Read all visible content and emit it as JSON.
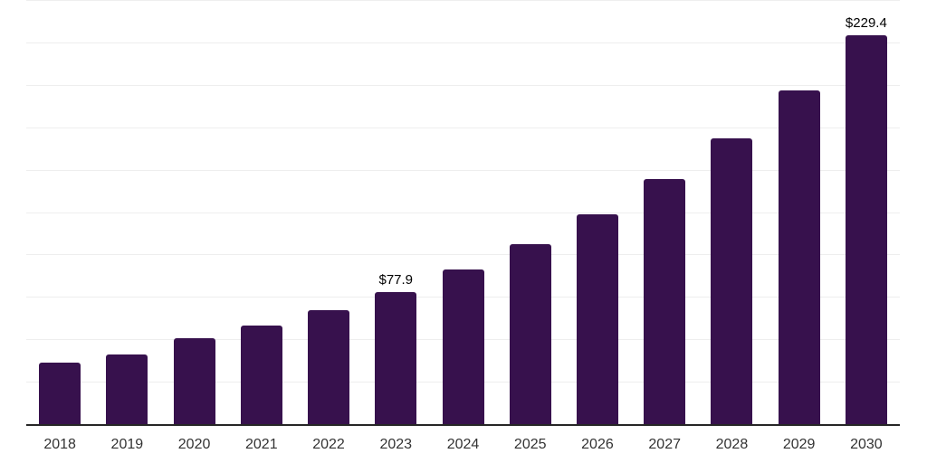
{
  "chart_data": {
    "type": "bar",
    "title": "",
    "xlabel": "",
    "ylabel": "",
    "categories": [
      "2018",
      "2019",
      "2020",
      "2021",
      "2022",
      "2023",
      "2024",
      "2025",
      "2026",
      "2027",
      "2028",
      "2029",
      "2030"
    ],
    "values": [
      36.1,
      40.9,
      50.4,
      58.0,
      67.4,
      77.9,
      90.9,
      106.1,
      123.8,
      144.4,
      168.5,
      196.6,
      229.4
    ],
    "bar_labels": [
      "",
      "",
      "",
      "",
      "",
      "$77.9",
      "",
      "",
      "",
      "",
      "",
      "",
      "$229.4"
    ],
    "ylim": [
      0,
      250
    ],
    "grid": true,
    "grid_step": 25,
    "y_tick_labels_shown": false,
    "legend": false,
    "colors": {
      "bar": "#37114d",
      "grid_line": "#eeeeee",
      "axis_line": "#262626",
      "tick_label": "#333333",
      "data_label": "#000000",
      "background": "#ffffff"
    }
  }
}
